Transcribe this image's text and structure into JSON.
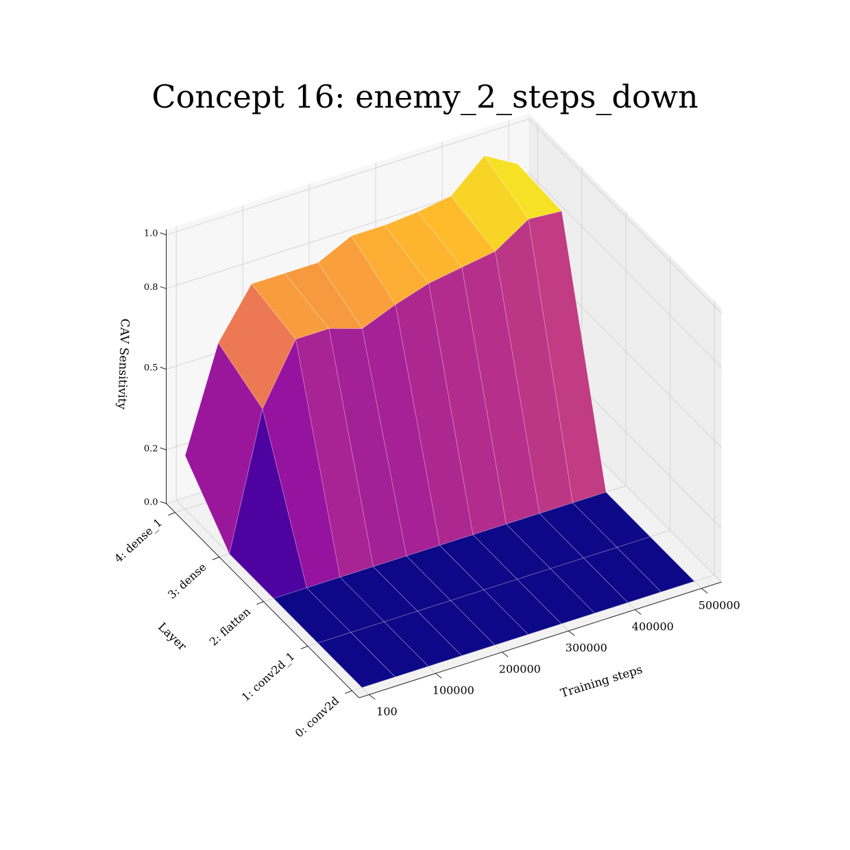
{
  "chart_data": {
    "type": "surface3d",
    "title": "Concept 16: enemy_2_steps_down",
    "xlabel": "Training steps",
    "ylabel": "Layer",
    "zlabel": "CAV Sensitivity",
    "x": [
      100,
      50000,
      100000,
      150000,
      200000,
      250000,
      300000,
      350000,
      400000,
      450000,
      500000
    ],
    "x_ticks": [
      100,
      100000,
      200000,
      300000,
      400000,
      500000
    ],
    "x_tick_labels": [
      "100",
      "100000",
      "200000",
      "300000",
      "400000",
      "500000"
    ],
    "layers": [
      "0: conv2d",
      "1: conv2d_1",
      "2: flatten",
      "3: dense",
      "4: dense_1"
    ],
    "z_ticks": [
      0.0,
      0.2,
      0.5,
      0.8,
      1.0
    ],
    "z_tick_labels": [
      "0.0",
      "0.2",
      "0.5",
      "0.8",
      "1.0"
    ],
    "zlim": [
      0,
      1
    ],
    "colormap": "plasma",
    "grid": true,
    "z": [
      [
        0,
        0,
        0,
        0,
        0,
        0,
        0,
        0,
        0,
        0,
        0
      ],
      [
        0,
        0,
        0,
        0,
        0,
        0,
        0,
        0,
        0,
        0,
        0
      ],
      [
        0,
        0,
        0,
        0,
        0,
        0,
        0,
        0,
        0,
        0,
        0
      ],
      [
        0,
        0.5,
        0.72,
        0.72,
        0.68,
        0.73,
        0.77,
        0.79,
        0.81,
        0.89,
        0.88
      ],
      [
        0.2,
        0.58,
        0.76,
        0.76,
        0.76,
        0.82,
        0.82,
        0.83,
        0.85,
        0.96,
        0.89
      ]
    ]
  }
}
